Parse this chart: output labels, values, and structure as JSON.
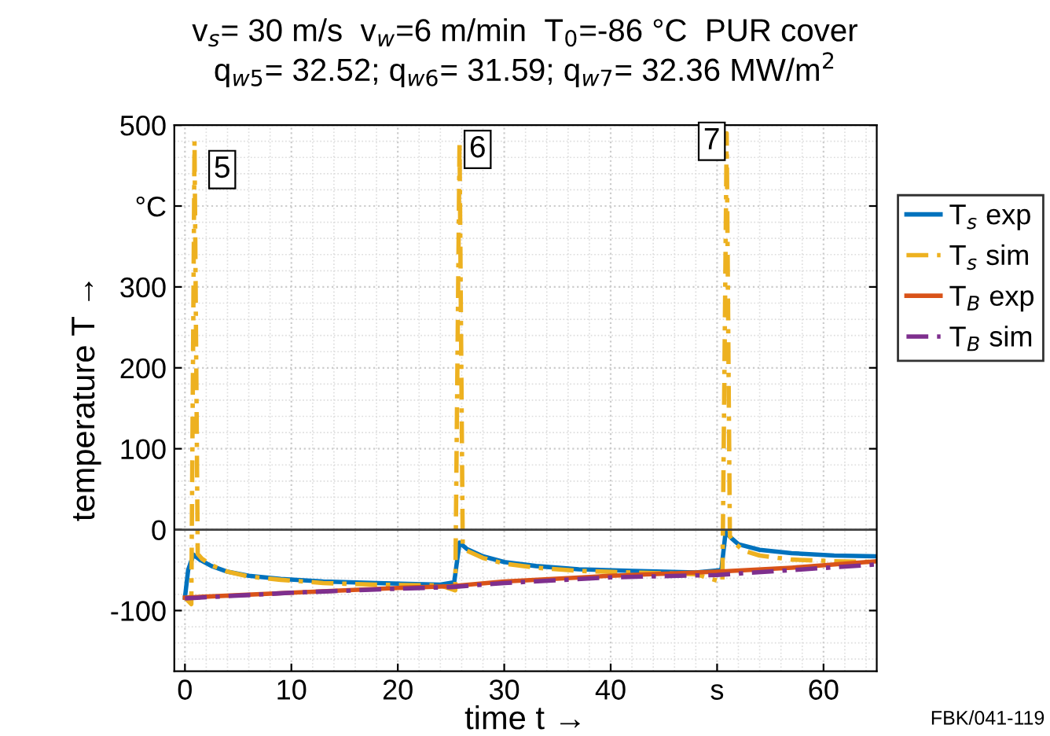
{
  "chart_data": {
    "type": "line",
    "title": "v$_{s}$= 30 m/s  v$_{w}$=6 m/min  T$_{0}$=-86 °C  PUR cover",
    "subtitle": "q$_{w5}$= 32.52; q$_{w6}$= 31.59; q$_{w7}$= 32.36 MW/m$^{2}$",
    "xlabel": "time t →",
    "ylabel": "temperature T →",
    "xlim": [
      -1,
      65
    ],
    "xticks": [
      0,
      10,
      20,
      30,
      40,
      {
        "value": 50,
        "label": "s"
      },
      60
    ],
    "ylim": [
      -175,
      500
    ],
    "yticks": [
      -100,
      0,
      100,
      200,
      300,
      {
        "value": 400,
        "label": "°C"
      },
      500
    ],
    "grid": true,
    "legend": "right",
    "ref_lines": [
      {
        "axis": "y",
        "value": 0,
        "color": "#404040"
      }
    ],
    "annotations": [
      {
        "text": "5",
        "x": 3.5,
        "y": 445
      },
      {
        "text": "6",
        "x": 27.5,
        "y": 470
      },
      {
        "text": "7",
        "x": 49.5,
        "y": 480
      },
      "FBK/041-119"
    ],
    "series": [
      {
        "name": "T$_{s}$ exp",
        "color": "#0072bd",
        "line_style": "solid",
        "x": [
          0,
          0.3,
          0.8,
          1.5,
          2.5,
          4,
          6,
          9,
          13,
          18,
          24,
          25.3,
          25.8,
          26.5,
          28,
          30,
          33,
          37,
          42,
          48,
          50.4,
          50.8,
          51.3,
          52,
          54,
          57,
          61,
          65
        ],
        "values": [
          -84,
          -50,
          -31,
          -38,
          -45,
          -52,
          -57,
          -61,
          -64,
          -66,
          -68,
          -65,
          -16,
          -24,
          -33,
          -40,
          -45,
          -49,
          -51,
          -53,
          -50,
          -3,
          -10,
          -18,
          -25,
          -29,
          -32,
          -33
        ]
      },
      {
        "name": "T$_{s}$ sim",
        "color": "#edb120",
        "line_style": "dashed",
        "x": [
          0,
          0.6,
          0.9,
          1.2,
          1.6,
          2.5,
          4,
          6,
          9,
          13,
          18,
          24,
          25.4,
          25.8,
          26.1,
          26.5,
          28,
          30,
          33,
          37,
          42,
          48,
          50.5,
          50.9,
          51.2,
          51.6,
          52.5,
          54,
          57,
          61,
          65
        ],
        "values": [
          -84,
          -92,
          480,
          -30,
          -36,
          -44,
          -52,
          -58,
          -62,
          -66,
          -68,
          -69,
          -75,
          480,
          -20,
          -26,
          -35,
          -42,
          -47,
          -51,
          -53,
          -55,
          -65,
          490,
          -8,
          -16,
          -26,
          -32,
          -37,
          -39,
          -40
        ]
      },
      {
        "name": "T$_{B}$ exp",
        "color": "#d95319",
        "line_style": "solid",
        "x": [
          0,
          10,
          20,
          25,
          30,
          40,
          50,
          57,
          65
        ],
        "values": [
          -84,
          -78,
          -72,
          -70,
          -64,
          -57,
          -52,
          -47,
          -39
        ]
      },
      {
        "name": "T$_{B}$ sim",
        "color": "#7e2f8e",
        "line_style": "dashed",
        "x": [
          0,
          10,
          20,
          25,
          30,
          40,
          50,
          57,
          65
        ],
        "values": [
          -85,
          -78,
          -73,
          -71,
          -66,
          -59,
          -56,
          -50,
          -43
        ]
      }
    ]
  }
}
